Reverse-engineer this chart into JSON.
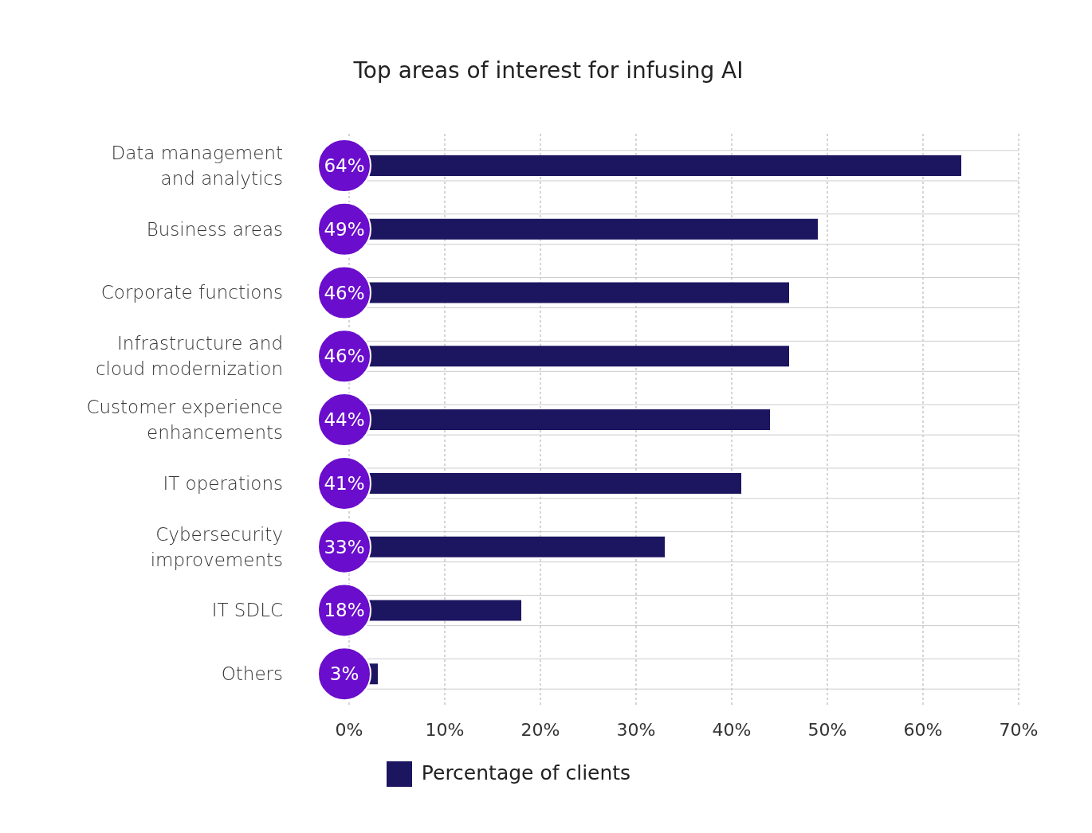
{
  "chart_data": {
    "type": "bar",
    "orientation": "horizontal",
    "title": "Top areas of interest for infusing AI",
    "categories": [
      "Data management and analytics",
      "Business areas",
      "Corporate functions",
      "Infrastructure and cloud modernization",
      "Customer experience enhancements",
      "IT operations",
      "Cybersecurity improvements",
      "IT SDLC",
      "Others"
    ],
    "series": [
      {
        "name": "Percentage of clients",
        "color": "#1c1560",
        "values": [
          64,
          49,
          46,
          46,
          44,
          41,
          33,
          18,
          3
        ],
        "value_labels": [
          "64%",
          "49%",
          "46%",
          "46%",
          "44%",
          "41%",
          "33%",
          "18%",
          "3%"
        ]
      }
    ],
    "xlim": [
      0,
      70
    ],
    "xticks": [
      {
        "value": 0,
        "label": "0%"
      },
      {
        "value": 10,
        "label": "10%"
      },
      {
        "value": 20,
        "label": "20%"
      },
      {
        "value": 30,
        "label": "30%"
      },
      {
        "value": 40,
        "label": "40%"
      },
      {
        "value": 50,
        "label": "50%"
      },
      {
        "value": 60,
        "label": "60%"
      },
      {
        "value": 70,
        "label": "70%"
      }
    ],
    "grid": "x",
    "legend": "bottom"
  }
}
